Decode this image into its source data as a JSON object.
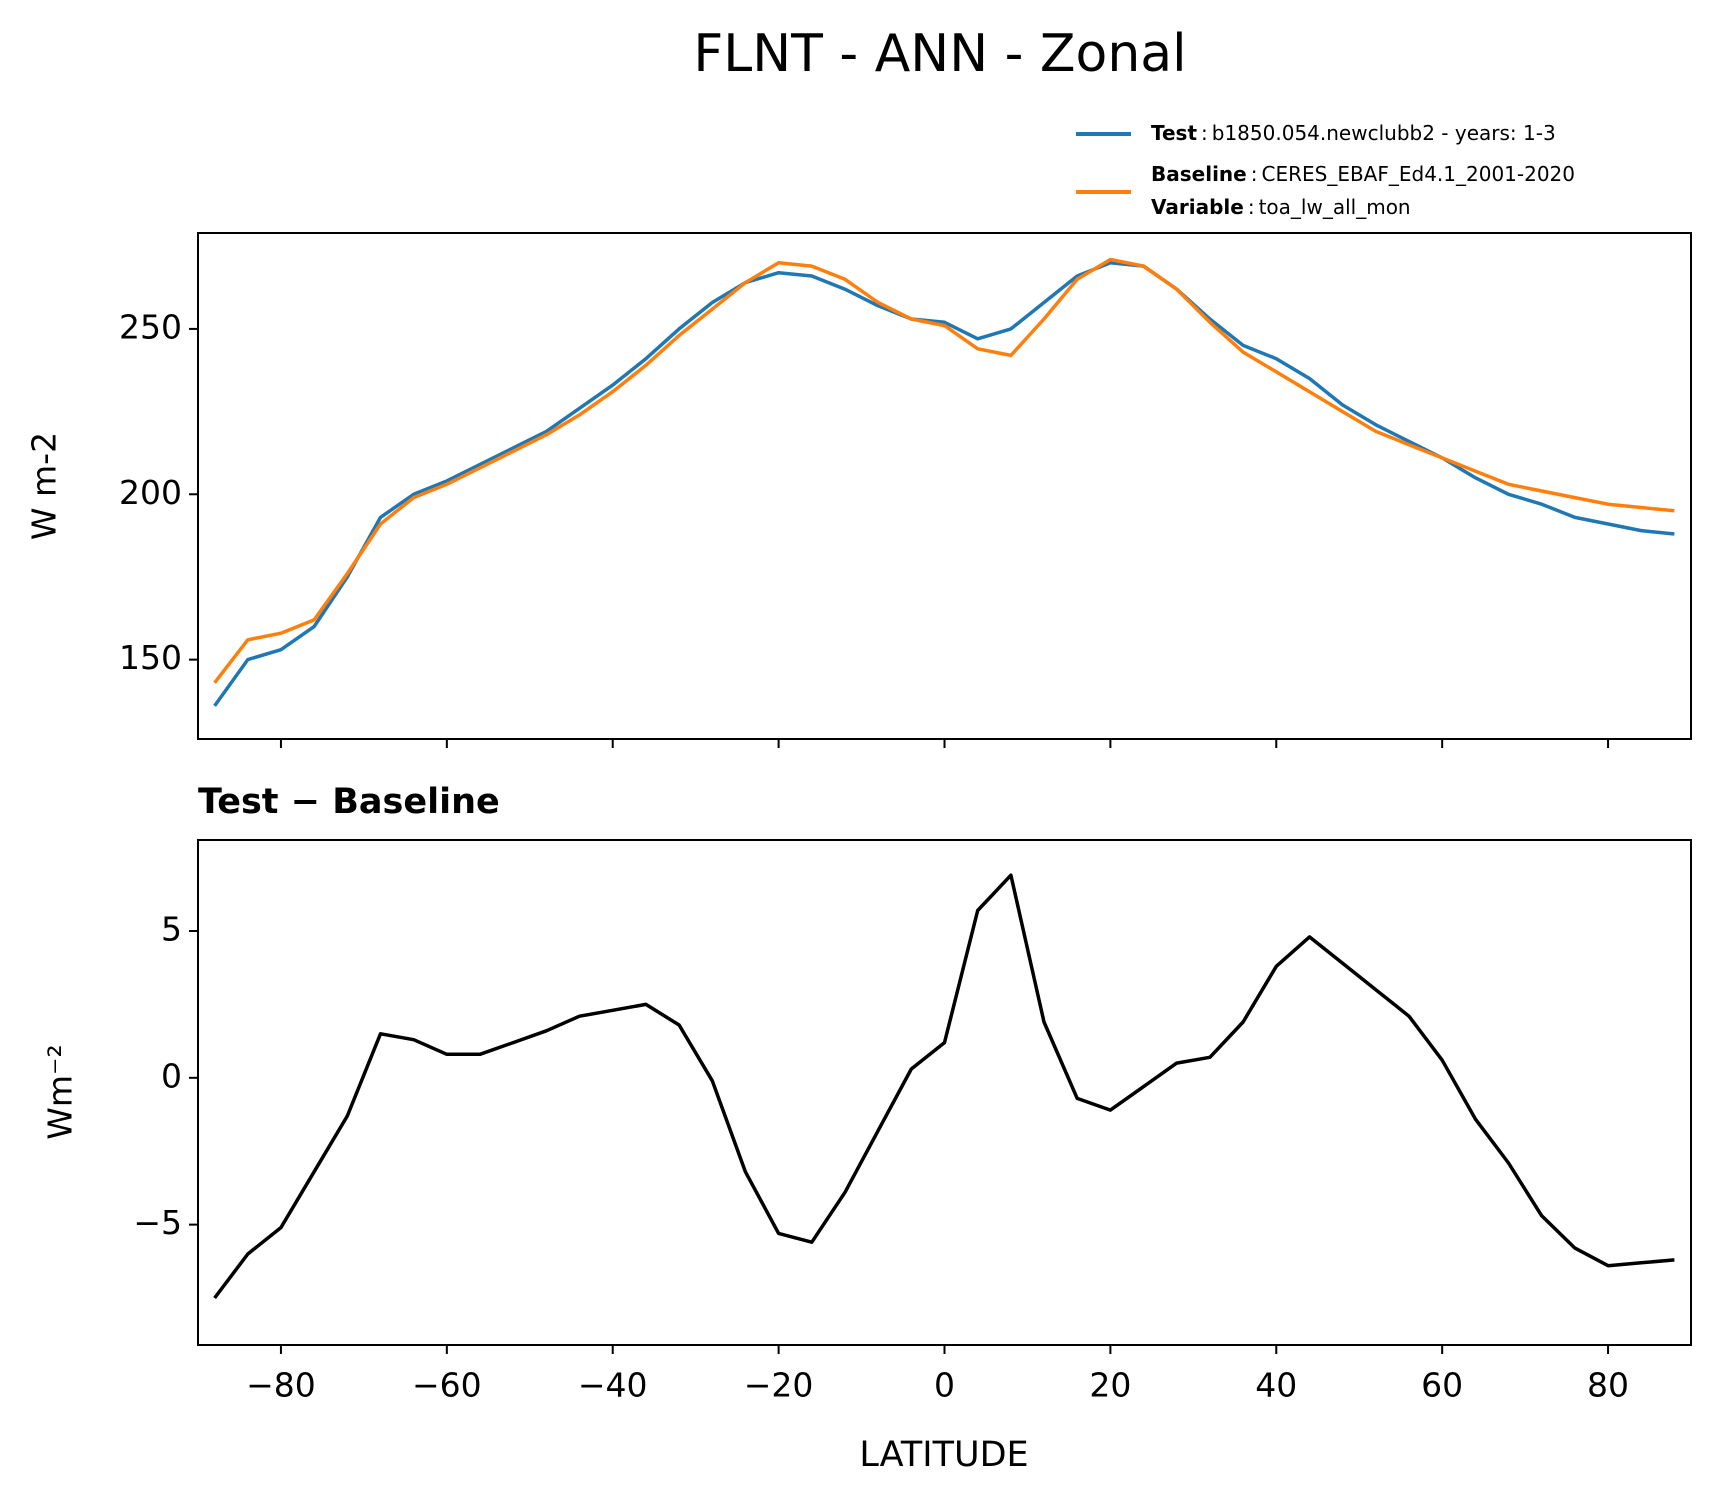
{
  "chart_data": [
    {
      "type": "line",
      "title": "FLNT - ANN - Zonal",
      "ylabel": "W m-2",
      "legend_separator": ":",
      "x": [
        -88,
        -84,
        -80,
        -76,
        -72,
        -68,
        -64,
        -60,
        -56,
        -52,
        -48,
        -44,
        -40,
        -36,
        -32,
        -28,
        -24,
        -20,
        -16,
        -12,
        -8,
        -4,
        0,
        4,
        8,
        12,
        16,
        20,
        24,
        28,
        32,
        36,
        40,
        44,
        48,
        52,
        56,
        60,
        64,
        68,
        72,
        76,
        80,
        84,
        88
      ],
      "series": [
        {
          "name": "Test",
          "description": "b1850.054.newclubb2 - years: 1-3",
          "color": "#1f77b4",
          "values": [
            136,
            150,
            153,
            160,
            175,
            193,
            200,
            204,
            209,
            214,
            219,
            226,
            233,
            241,
            250,
            258,
            264,
            267,
            266,
            262,
            257,
            253,
            252,
            247,
            250,
            258,
            266,
            270,
            269,
            262,
            253,
            245,
            241,
            235,
            227,
            221,
            216,
            211,
            205,
            200,
            197,
            193,
            191,
            189,
            188
          ]
        },
        {
          "name": "Baseline",
          "description": "CERES_EBAF_Ed4.1_2001-2020",
          "variable_label": "Variable",
          "variable": "toa_lw_all_mon",
          "color": "#ff7f0e",
          "values": [
            143,
            156,
            158,
            162,
            176,
            191,
            199,
            203,
            208,
            213,
            218,
            224,
            231,
            239,
            248,
            256,
            264,
            270,
            269,
            265,
            258,
            253,
            251,
            244,
            242,
            253,
            265,
            271,
            269,
            262,
            252,
            243,
            237,
            231,
            225,
            219,
            215,
            211,
            207,
            203,
            201,
            199,
            197,
            196,
            195
          ]
        }
      ],
      "xlim": [
        -90,
        90
      ],
      "xticks": [
        -80,
        -60,
        -40,
        -20,
        0,
        20,
        40,
        60,
        80
      ],
      "ylim": [
        126,
        279
      ],
      "yticks": [
        150,
        200,
        250
      ]
    },
    {
      "type": "line",
      "title": "Test − Baseline",
      "ylabel": "Wm⁻²",
      "xlabel": "LATITUDE",
      "x": [
        -88,
        -84,
        -80,
        -76,
        -72,
        -68,
        -64,
        -60,
        -56,
        -52,
        -48,
        -44,
        -40,
        -36,
        -32,
        -28,
        -24,
        -20,
        -16,
        -12,
        -8,
        -4,
        0,
        4,
        8,
        12,
        16,
        20,
        24,
        28,
        32,
        36,
        40,
        44,
        48,
        52,
        56,
        60,
        64,
        68,
        72,
        76,
        80,
        84,
        88
      ],
      "series": [
        {
          "color": "#000000",
          "values": [
            -7.5,
            -6,
            -5.1,
            -3.2,
            -1.3,
            1.5,
            1.3,
            0.8,
            0.8,
            1.2,
            1.6,
            2.1,
            2.3,
            2.5,
            1.8,
            -0.1,
            -3.2,
            -5.3,
            -5.6,
            -3.9,
            -1.8,
            0.3,
            1.2,
            5.7,
            6.9,
            1.9,
            -0.7,
            -1.1,
            -0.3,
            0.5,
            0.7,
            1.9,
            3.8,
            4.8,
            3.9,
            3.0,
            2.1,
            0.6,
            -1.4,
            -2.9,
            -4.7,
            -5.8,
            -6.4,
            -6.3,
            -6.2
          ]
        }
      ],
      "xlim": [
        -90,
        90
      ],
      "xticks": [
        {
          "value": -80,
          "label": "−80"
        },
        {
          "value": -60,
          "label": "−60"
        },
        {
          "value": -40,
          "label": "−40"
        },
        {
          "value": -20,
          "label": "−20"
        },
        0,
        20,
        40,
        60,
        80
      ],
      "ylim": [
        -9.1,
        8.1
      ],
      "yticks": [
        {
          "value": -5,
          "label": "−5"
        },
        0,
        5
      ]
    }
  ]
}
